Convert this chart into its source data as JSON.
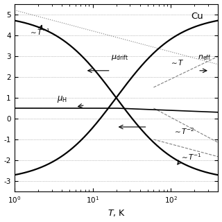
{
  "title": "Cu",
  "xlabel": "T, K",
  "xlim": [
    1,
    400
  ],
  "ylim": [
    -3.5,
    5.5
  ],
  "yticks": [
    -3,
    -2,
    -1,
    0,
    1,
    2,
    3,
    4,
    5
  ],
  "ytick_labels": [
    "-3",
    "-2",
    "-1",
    "0",
    "1",
    "2",
    "3",
    "4",
    "5"
  ],
  "hlines_dotted": [
    -3,
    -2,
    -1,
    0,
    1,
    2,
    3,
    4,
    5
  ],
  "background_color": "#ffffff"
}
